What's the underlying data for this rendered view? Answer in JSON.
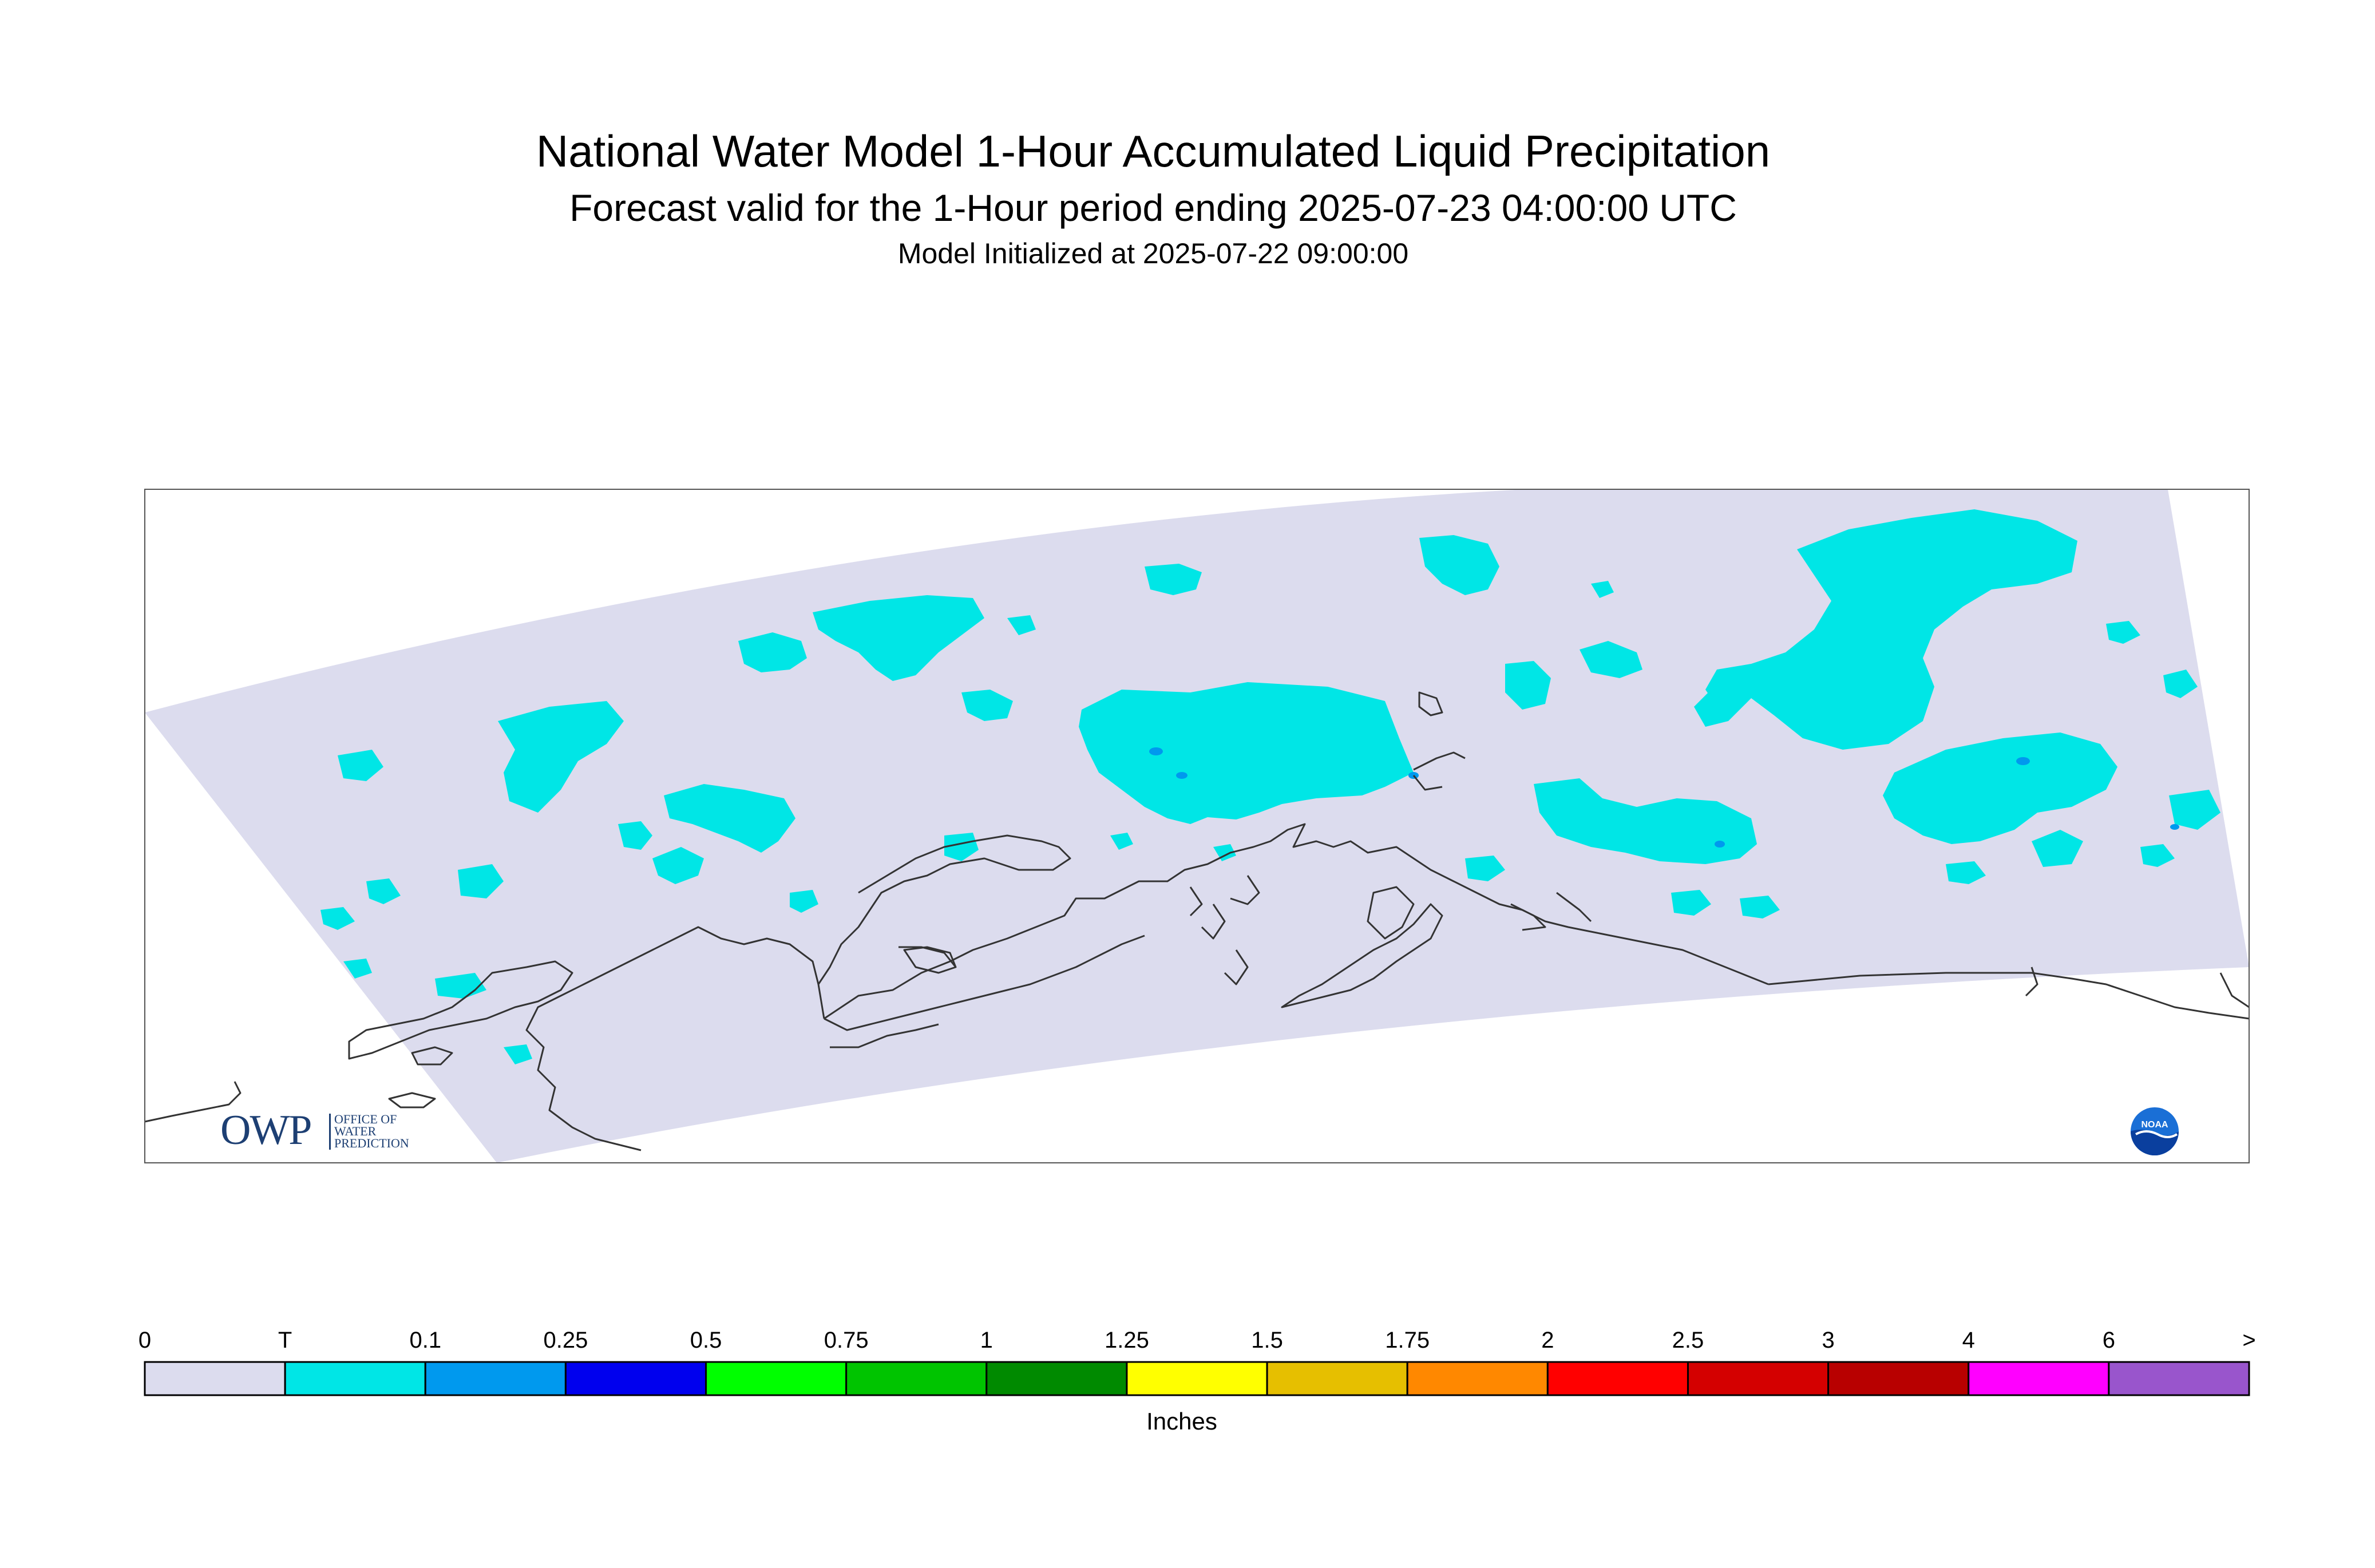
{
  "title": "National Water Model 1-Hour Accumulated Liquid Precipitation",
  "subtitle": "Forecast valid for the 1-Hour period ending 2025-07-23 04:00:00 UTC",
  "init_line": "Model Initialized at 2025-07-22 09:00:00",
  "colorbar": {
    "unit_label": "Inches",
    "tick_labels": [
      "0",
      "T",
      "0.1",
      "0.25",
      "0.5",
      "0.75",
      "1",
      "1.25",
      "1.5",
      "1.75",
      "2",
      "2.5",
      "3",
      "4",
      "6",
      ">"
    ],
    "colors": [
      "#dcdcee",
      "#00e6e6",
      "#0099ee",
      "#0000ee",
      "#00ff00",
      "#00c400",
      "#008a00",
      "#ffff00",
      "#e6bf00",
      "#ff8800",
      "#ff0000",
      "#d40000",
      "#b80000",
      "#ff00ff",
      "#9955cc"
    ]
  },
  "map": {
    "domain_fill": "#dcdcee",
    "precip_colors": {
      "trace": "#00e6e6",
      "light": "#0099ee"
    },
    "coastline_color": "#333333"
  },
  "logos": {
    "owp_text": "OWP",
    "owp_subtext": [
      "OFFICE OF",
      "WATER",
      "PREDICTION"
    ],
    "noaa_text": "NOAA"
  }
}
